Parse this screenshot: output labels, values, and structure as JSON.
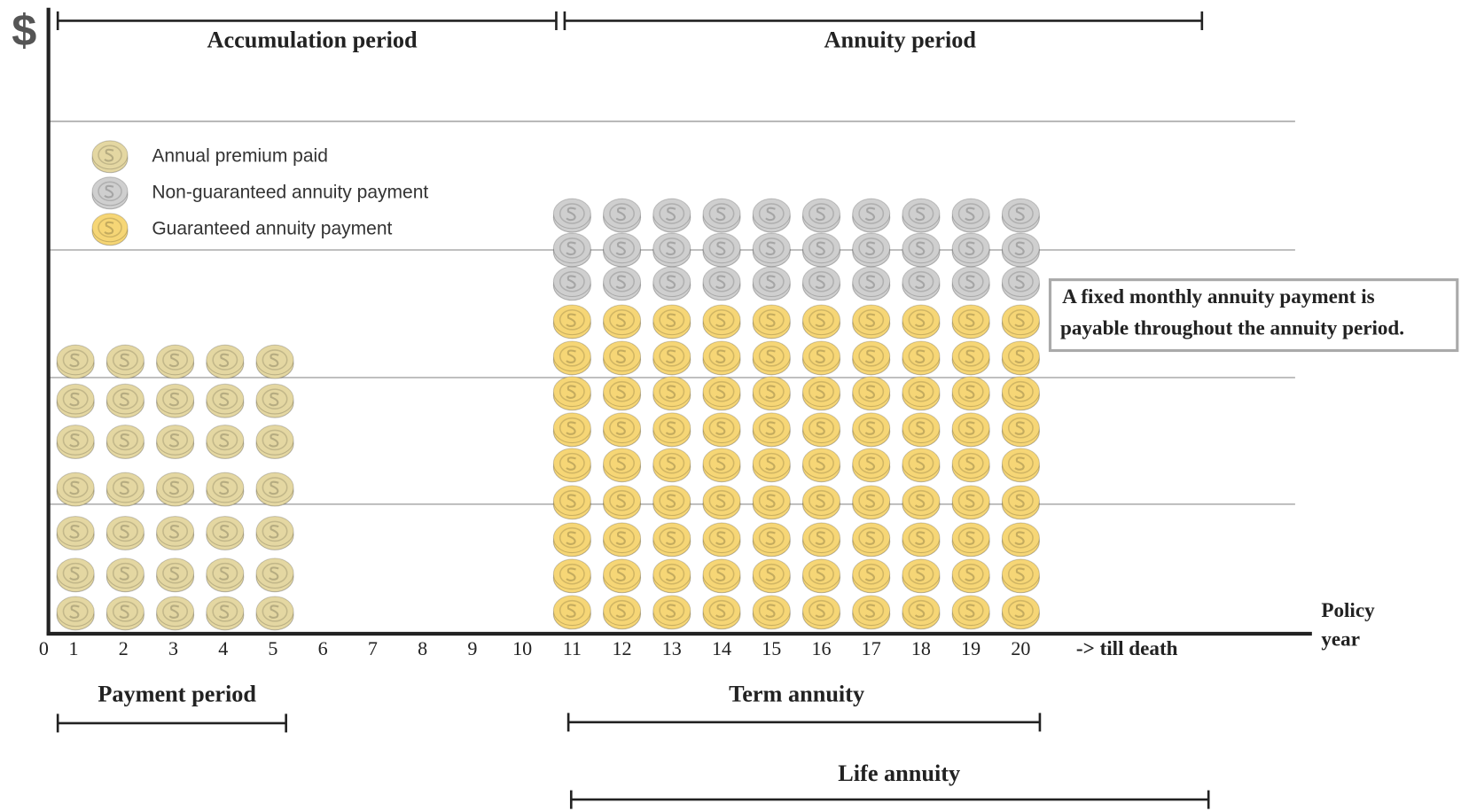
{
  "axis_symbol": "$",
  "headers": {
    "accumulation": "Accumulation period",
    "annuity": "Annuity period"
  },
  "legend": [
    {
      "label": "Annual premium paid",
      "color": "#e4d7a2"
    },
    {
      "label": "Non-guaranteed annuity payment",
      "color": "#cfcfcf"
    },
    {
      "label": "Guaranteed annuity payment",
      "color": "#f6d676"
    }
  ],
  "note": [
    "A fixed monthly annuity payment is",
    "payable throughout the annuity period."
  ],
  "x_axis": {
    "ticks": [
      0,
      1,
      2,
      3,
      4,
      5,
      6,
      7,
      8,
      9,
      10,
      11,
      12,
      13,
      14,
      15,
      16,
      17,
      18,
      19,
      20
    ],
    "tail": "-> till death",
    "title": [
      "Policy",
      "year"
    ]
  },
  "periods": {
    "payment": "Payment period",
    "term": "Term annuity",
    "life": "Life annuity"
  }
}
